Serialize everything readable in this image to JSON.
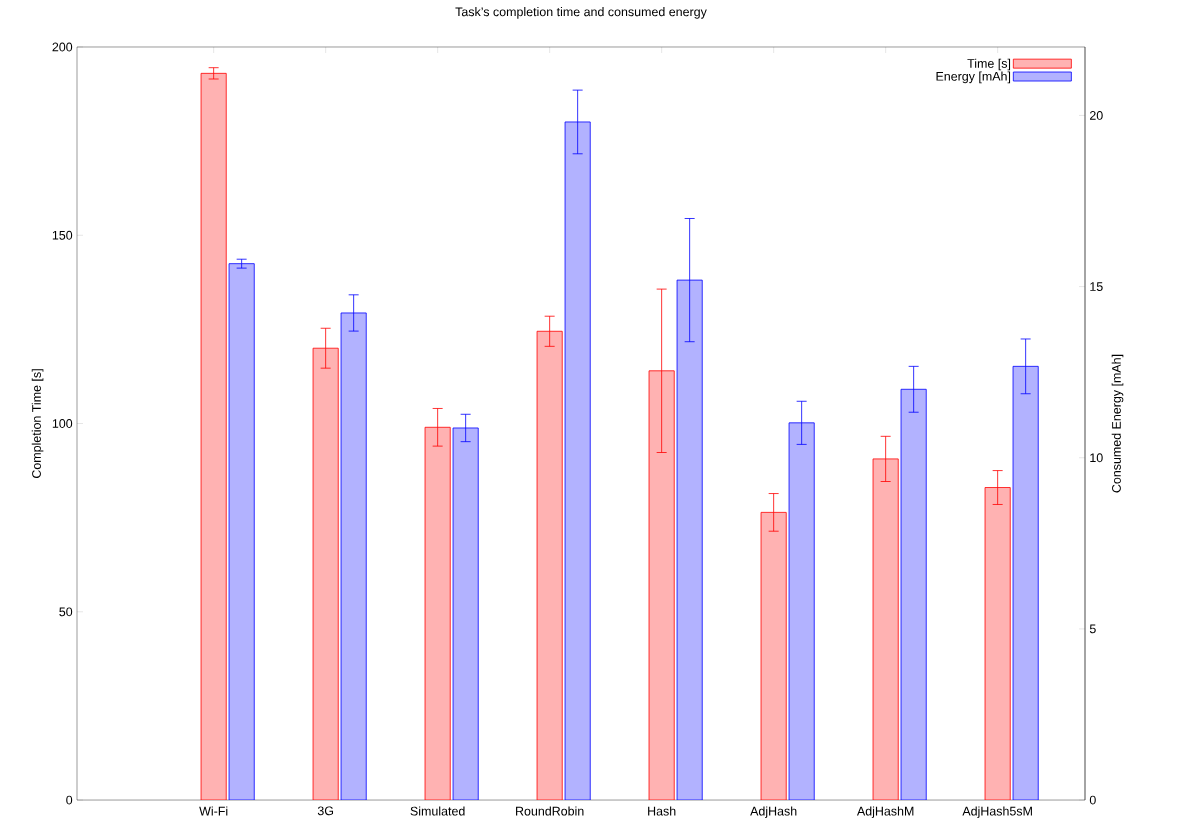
{
  "chart_data": {
    "type": "bar",
    "title": "Task’s completion time and consumed energy",
    "ylabel": "Completion Time [s]",
    "y2label": "Consumed Energy [mAh]",
    "categories": [
      "Wi-Fi",
      "3G",
      "Simulated",
      "RoundRobin",
      "Hash",
      "AdjHash",
      "AdjHashM",
      "AdjHash5sM"
    ],
    "series": [
      {
        "name": "Time [s]",
        "color": "#ffb2b2",
        "values": [
          193.0,
          120.0,
          99.0,
          124.5,
          114.0,
          76.4,
          90.6,
          83.0
        ],
        "errors": [
          1.5,
          5.3,
          5,
          4,
          21.7,
          5,
          6,
          4.5
        ]
      },
      {
        "name": "Energy [mAh]",
        "color": "#b2b2ff",
        "axis": "y2",
        "values": [
          15.67,
          14.23,
          10.87,
          19.81,
          15.19,
          11.02,
          12.0,
          12.67
        ],
        "errors": [
          0.13,
          0.53,
          0.4,
          0.93,
          1.8,
          0.63,
          0.67,
          0.8
        ]
      }
    ],
    "ylim": [
      0,
      200
    ],
    "yticks": [
      0,
      50,
      100,
      150,
      200
    ],
    "y2lim": [
      0,
      22
    ],
    "y2ticks": [
      0,
      5,
      10,
      15,
      20
    ],
    "legend": "top right",
    "grid": false
  }
}
